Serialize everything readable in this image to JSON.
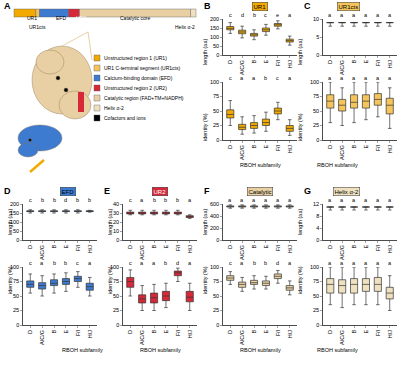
{
  "panel_a": {
    "letter": "A",
    "domains": [
      {
        "label": "UR1",
        "color": "#f2a900"
      },
      {
        "label": "UR1cts",
        "color": "#f5c55c"
      },
      {
        "label": "EFD",
        "color": "#3d7bd1"
      },
      {
        "label": "UR2",
        "color": "#d62839"
      },
      {
        "label": "Catalytic core",
        "color": "#e8d0a4"
      },
      {
        "label": "Helix α-2",
        "color": "#efe0c0"
      }
    ],
    "legend": [
      {
        "label": "Unstructured region 1 (UR1)",
        "color": "#f2a900"
      },
      {
        "label": "UR1 C-terminal segment (UR1cts)",
        "color": "#f5c55c"
      },
      {
        "label": "Calcium-binding domain (EFD)",
        "color": "#3d7bd1"
      },
      {
        "label": "Unstructured region 2 (UR2)",
        "color": "#d62839"
      },
      {
        "label": "Catalytic region (FAD+TM+NADPH)",
        "color": "#e8d0a4"
      },
      {
        "label": "Helix α-2",
        "color": "#efe0c0"
      },
      {
        "label": "Cofactors and ions",
        "color": "#000000"
      }
    ]
  },
  "chart_data": [
    {
      "type": "box",
      "panel": "B",
      "title": "UR1",
      "color": "#f2a900",
      "x_title": "RBOH subfamily",
      "grid": false,
      "categories": [
        "D",
        "A/C/G",
        "B",
        "E",
        "F/I",
        "H/J"
      ],
      "plots": [
        {
          "y_title": "length (aa)",
          "ylim": [
            0,
            200
          ],
          "yticks": [
            0,
            50,
            100,
            150,
            200
          ],
          "lower": [
            120,
            95,
            85,
            110,
            145,
            55
          ],
          "q1": [
            140,
            118,
            105,
            130,
            160,
            72
          ],
          "median": [
            148,
            128,
            112,
            140,
            168,
            80
          ],
          "q3": [
            158,
            138,
            120,
            150,
            175,
            88
          ],
          "upper": [
            180,
            160,
            140,
            170,
            190,
            105
          ],
          "letters": [
            "c",
            "d",
            "b",
            "c",
            "e",
            "a"
          ]
        },
        {
          "y_title": "identity (%)",
          "ylim": [
            0,
            100
          ],
          "yticks": [
            0,
            25,
            50,
            75,
            100
          ],
          "lower": [
            25,
            10,
            12,
            15,
            35,
            8
          ],
          "q1": [
            38,
            18,
            20,
            25,
            45,
            15
          ],
          "median": [
            44,
            22,
            25,
            30,
            50,
            20
          ],
          "q3": [
            52,
            27,
            30,
            36,
            55,
            25
          ],
          "upper": [
            68,
            40,
            42,
            48,
            65,
            35
          ],
          "letters": [
            "c",
            "a",
            "a",
            "b",
            "c",
            "a"
          ]
        }
      ]
    },
    {
      "type": "box",
      "panel": "C",
      "title": "UR1cts",
      "color": "#f5c55c",
      "x_title": "RBOH subfamily",
      "grid": false,
      "categories": [
        "D",
        "A/C/G",
        "B",
        "E",
        "F/I",
        "H/J"
      ],
      "plots": [
        {
          "y_title": "length (aa)",
          "ylim": [
            0,
            10
          ],
          "yticks": [
            0,
            5,
            10
          ],
          "lower": [
            8,
            8,
            8,
            8,
            8,
            8
          ],
          "q1": [
            9,
            9,
            9,
            9,
            9,
            9
          ],
          "median": [
            9,
            9,
            9,
            9,
            9,
            9
          ],
          "q3": [
            9,
            9,
            9,
            9,
            9,
            9
          ],
          "upper": [
            9,
            9,
            9,
            9,
            9,
            9
          ],
          "letters": [
            "a",
            "a",
            "a",
            "a",
            "a",
            "a"
          ]
        },
        {
          "y_title": "identity (%)",
          "ylim": [
            0,
            100
          ],
          "yticks": [
            0,
            25,
            50,
            75,
            100
          ],
          "lower": [
            30,
            25,
            30,
            35,
            40,
            20
          ],
          "q1": [
            55,
            50,
            55,
            55,
            60,
            45
          ],
          "median": [
            67,
            60,
            65,
            67,
            70,
            60
          ],
          "q3": [
            78,
            70,
            78,
            78,
            80,
            72
          ],
          "upper": [
            100,
            90,
            100,
            100,
            100,
            90
          ],
          "letters": [
            "a",
            "a",
            "a",
            "a",
            "a",
            "a"
          ]
        }
      ]
    },
    {
      "type": "box",
      "panel": "D",
      "title": "EFD",
      "color": "#3d7bd1",
      "x_title": "RBOH subfamily",
      "grid": false,
      "categories": [
        "D",
        "A/C/G",
        "B",
        "E",
        "F/I",
        "H/J"
      ],
      "plots": [
        {
          "y_title": "length (aa)",
          "ylim": [
            0,
            200
          ],
          "yticks": [
            0,
            50,
            100,
            150,
            200
          ],
          "lower": [
            150,
            150,
            150,
            150,
            150,
            155
          ],
          "q1": [
            158,
            158,
            158,
            158,
            158,
            158
          ],
          "median": [
            160,
            160,
            160,
            160,
            160,
            160
          ],
          "q3": [
            162,
            162,
            162,
            162,
            162,
            162
          ],
          "upper": [
            168,
            168,
            168,
            168,
            168,
            165
          ],
          "letters": [
            "c",
            "b",
            "b",
            "d",
            "b",
            "b"
          ]
        },
        {
          "y_title": "identity (%)",
          "ylim": [
            0,
            100
          ],
          "yticks": [
            0,
            25,
            50,
            75,
            100
          ],
          "lower": [
            55,
            50,
            55,
            58,
            65,
            50
          ],
          "q1": [
            65,
            62,
            68,
            70,
            75,
            60
          ],
          "median": [
            70,
            68,
            72,
            75,
            80,
            66
          ],
          "q3": [
            76,
            73,
            78,
            80,
            84,
            72
          ],
          "upper": [
            88,
            85,
            88,
            90,
            92,
            82
          ],
          "letters": [
            "c",
            "a",
            "b",
            "b",
            "c",
            "a"
          ]
        }
      ]
    },
    {
      "type": "box",
      "panel": "E",
      "title": "UR2",
      "color": "#d62839",
      "x_title": "RBOH subfamily",
      "grid": false,
      "categories": [
        "D",
        "A/C/G",
        "B",
        "E",
        "F/I",
        "H/J"
      ],
      "plots": [
        {
          "y_title": "length (aa)",
          "ylim": [
            0,
            40
          ],
          "yticks": [
            0,
            10,
            20,
            30,
            40
          ],
          "lower": [
            28,
            28,
            28,
            28,
            28,
            24
          ],
          "q1": [
            29,
            29,
            29,
            29,
            29,
            25
          ],
          "median": [
            30,
            30,
            30,
            30,
            30,
            26
          ],
          "q3": [
            31,
            31,
            31,
            31,
            31,
            27
          ],
          "upper": [
            33,
            33,
            33,
            33,
            33,
            28
          ],
          "letters": [
            "c",
            "a",
            "b",
            "b",
            "b",
            "a"
          ]
        },
        {
          "y_title": "identity (%)",
          "ylim": [
            0,
            100
          ],
          "yticks": [
            0,
            25,
            50,
            75,
            100
          ],
          "lower": [
            50,
            25,
            25,
            30,
            75,
            25
          ],
          "q1": [
            65,
            38,
            38,
            42,
            85,
            40
          ],
          "median": [
            75,
            45,
            47,
            50,
            90,
            48
          ],
          "q3": [
            82,
            52,
            55,
            58,
            93,
            58
          ],
          "upper": [
            95,
            68,
            70,
            72,
            98,
            72
          ],
          "letters": [
            "c",
            "a",
            "a",
            "b",
            "d",
            "a"
          ]
        }
      ]
    },
    {
      "type": "box",
      "panel": "F",
      "title": "Catalytic",
      "color": "#e8d0a4",
      "x_title": "RBOH subfamily",
      "grid": false,
      "categories": [
        "D",
        "A/C/G",
        "B",
        "E",
        "F/I",
        "H/J"
      ],
      "plots": [
        {
          "y_title": "length (aa)",
          "ylim": [
            0,
            600
          ],
          "yticks": [
            0,
            200,
            400,
            600
          ],
          "lower": [
            530,
            530,
            530,
            530,
            530,
            530
          ],
          "q1": [
            550,
            550,
            550,
            550,
            550,
            550
          ],
          "median": [
            560,
            560,
            560,
            560,
            560,
            560
          ],
          "q3": [
            568,
            568,
            568,
            568,
            568,
            568
          ],
          "upper": [
            585,
            585,
            585,
            585,
            585,
            585
          ],
          "letters": [
            "a",
            "a",
            "a",
            "a",
            "a",
            "a"
          ]
        },
        {
          "y_title": "identity (%)",
          "ylim": [
            0,
            100
          ],
          "yticks": [
            0,
            25,
            50,
            75,
            100
          ],
          "lower": [
            70,
            58,
            62,
            62,
            72,
            52
          ],
          "q1": [
            77,
            65,
            70,
            68,
            80,
            60
          ],
          "median": [
            81,
            70,
            73,
            72,
            84,
            64
          ],
          "q3": [
            85,
            74,
            77,
            76,
            88,
            68
          ],
          "upper": [
            92,
            82,
            85,
            84,
            94,
            76
          ],
          "letters": [
            "c",
            "a",
            "b",
            "b",
            "d",
            "a"
          ]
        }
      ]
    },
    {
      "type": "box",
      "panel": "G",
      "title": "Helix α-2",
      "color": "#efe0c0",
      "x_title": "RBOH subfamily",
      "grid": false,
      "categories": [
        "D",
        "A/C/G",
        "B",
        "E",
        "F/I",
        "H/J"
      ],
      "plots": [
        {
          "y_title": "length (aa)",
          "ylim": [
            0,
            12
          ],
          "yticks": [
            0,
            4,
            8,
            12
          ],
          "lower": [
            10,
            10,
            10,
            10,
            10,
            10
          ],
          "q1": [
            11,
            11,
            11,
            11,
            11,
            11
          ],
          "median": [
            11,
            11,
            11,
            11,
            11,
            11
          ],
          "q3": [
            11,
            11,
            11,
            11,
            11,
            11
          ],
          "upper": [
            11,
            11,
            11,
            11,
            11,
            11
          ],
          "letters": [
            "a",
            "a",
            "a",
            "a",
            "a",
            "a"
          ]
        },
        {
          "y_title": "identity (%)",
          "ylim": [
            0,
            100
          ],
          "yticks": [
            0,
            25,
            50,
            75,
            100
          ],
          "lower": [
            35,
            30,
            35,
            35,
            35,
            25
          ],
          "q1": [
            55,
            55,
            55,
            58,
            58,
            45
          ],
          "median": [
            70,
            68,
            70,
            70,
            70,
            55
          ],
          "q3": [
            80,
            78,
            80,
            80,
            82,
            65
          ],
          "upper": [
            100,
            100,
            100,
            100,
            100,
            85
          ],
          "letters": [
            "a",
            "a",
            "a",
            "a",
            "a",
            "a"
          ]
        }
      ]
    }
  ]
}
